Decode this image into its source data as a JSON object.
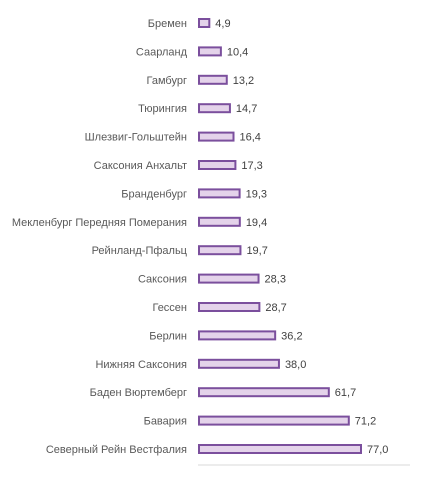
{
  "chart_data": {
    "type": "bar",
    "orientation": "horizontal",
    "categories": [
      "Бремен",
      "Саарланд",
      "Гамбург",
      "Тюрингия",
      "Шлезвиг-Гольштейн",
      "Саксония Анхальт",
      "Бранденбург",
      "Мекленбург Передняя Померания",
      "Рейнланд-Пфальц",
      "Саксония",
      "Гессен",
      "Берлин",
      "Нижняя Саксония",
      "Баден Вюртемберг",
      "Бавария",
      "Северный Рейн Вестфалия"
    ],
    "values": [
      4.9,
      10.4,
      13.2,
      14.7,
      16.4,
      17.3,
      19.3,
      19.4,
      19.7,
      28.3,
      28.7,
      36.2,
      38.0,
      61.7,
      71.2,
      77.0
    ],
    "value_labels": [
      "4,9",
      "10,4",
      "13,2",
      "14,7",
      "16,4",
      "17,3",
      "19,3",
      "19,4",
      "19,7",
      "28,3",
      "28,7",
      "36,2",
      "38,0",
      "61,7",
      "71,2",
      "77,0"
    ],
    "xlim": [
      0,
      90
    ],
    "grid": false,
    "title": "",
    "xlabel": "",
    "ylabel": "",
    "colors": {
      "bar_fill": "#e4d3ea",
      "bar_stroke": "#7b4f9d",
      "axis": "#d9d9d9"
    }
  }
}
